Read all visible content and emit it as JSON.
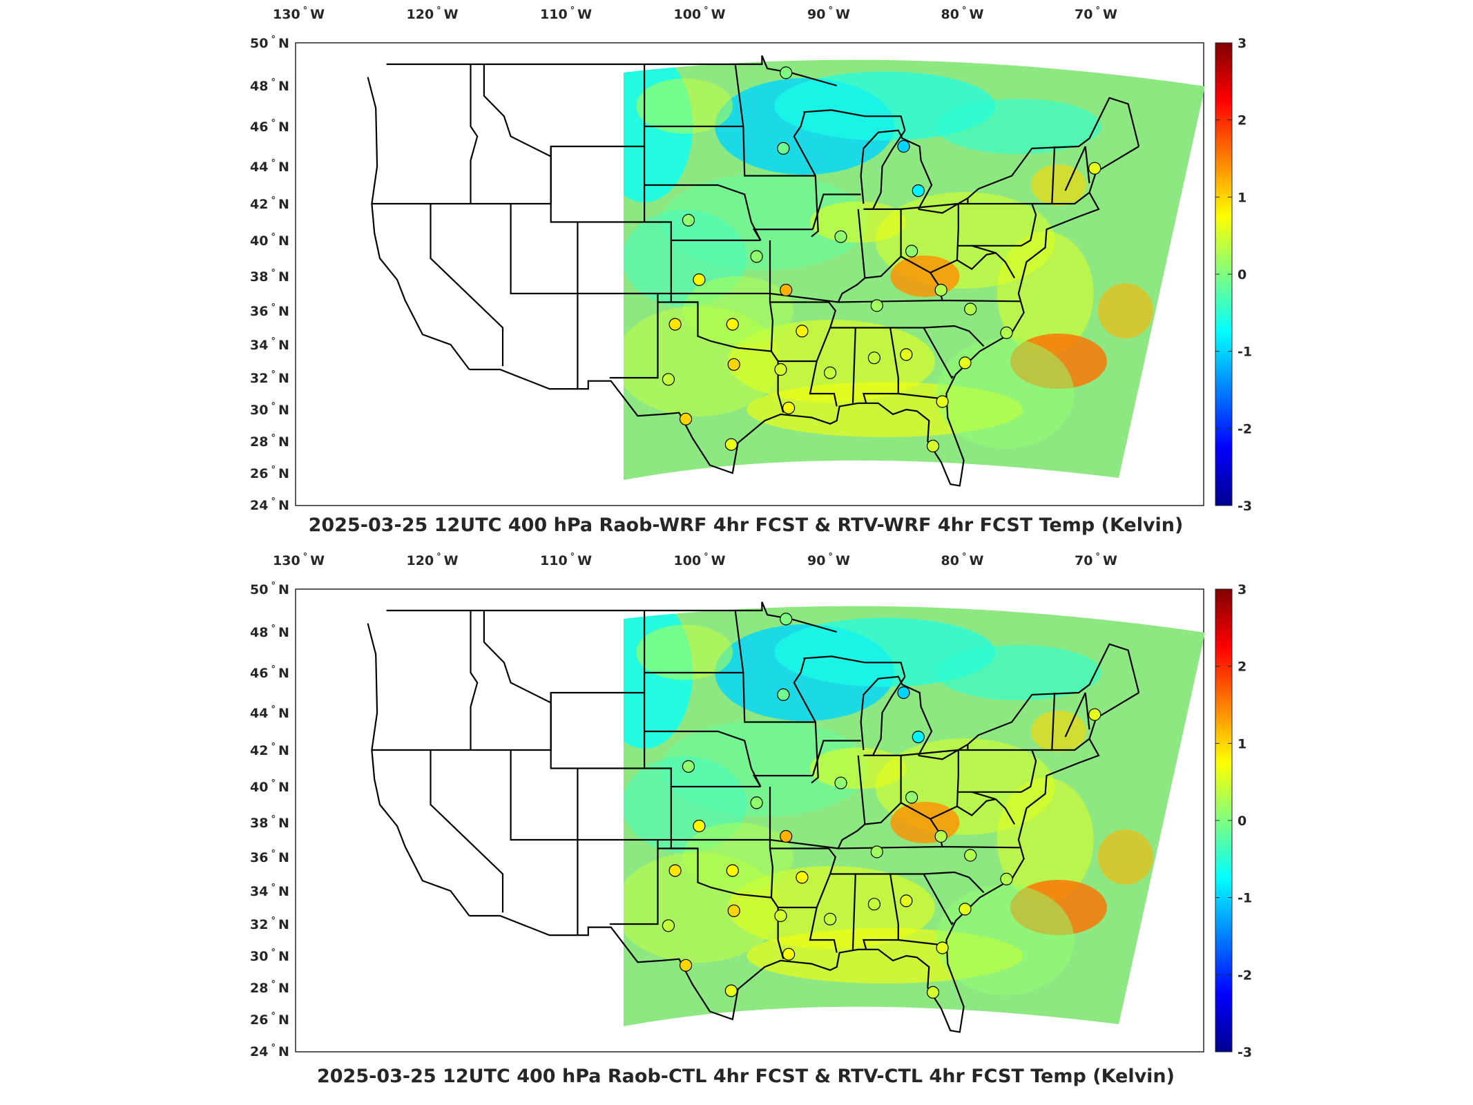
{
  "panels": [
    {
      "id": "top",
      "title": "2025-03-25 12UTC 400 hPa Raob-WRF 4hr FCST & RTV-WRF 4hr FCST Temp (Kelvin)"
    },
    {
      "id": "bottom",
      "title": "2025-03-25 12UTC 400 hPa Raob-CTL 4hr FCST & RTV-CTL 4hr FCST Temp (Kelvin)"
    }
  ],
  "map": {
    "lon_ticks": [
      "130",
      "120",
      "110",
      "100",
      "90",
      "80",
      "70"
    ],
    "lon_suffix": "W",
    "lat_ticks": [
      "50",
      "48",
      "46",
      "44",
      "42",
      "40",
      "38",
      "36",
      "34",
      "32",
      "30",
      "28",
      "26",
      "24"
    ],
    "lat_suffix": "N",
    "degree_symbol": "°",
    "colorbar_ticks": [
      "3",
      "2",
      "1",
      "0",
      "-1",
      "-2",
      "-3"
    ],
    "colorbar_range": [
      -3,
      3
    ],
    "colormap": "jet",
    "field_dominant_colors": {
      "cool": "#3ad9e8",
      "neutral": "#9be36a",
      "warm": "#f4e63a",
      "hot": "#f59a1e"
    }
  },
  "chart_data": [
    {
      "type": "scatter",
      "title": "2025-03-25 12UTC 400 hPa Raob-WRF 4hr FCST & RTV-WRF 4hr FCST Temp (Kelvin)",
      "description_of_marks": "Raob station circles colored by temperature difference (K)",
      "stations": [
        {
          "lon": -93.4,
          "lat": 48.6,
          "value": 0.0
        },
        {
          "lon": -93.6,
          "lat": 44.9,
          "value": -0.1
        },
        {
          "lon": -84.6,
          "lat": 45.0,
          "value": -1.0
        },
        {
          "lon": -83.5,
          "lat": 42.7,
          "value": -0.8
        },
        {
          "lon": -70.3,
          "lat": 43.9,
          "value": 0.6
        },
        {
          "lon": -100.7,
          "lat": 41.1,
          "value": 0.1
        },
        {
          "lon": -95.6,
          "lat": 39.1,
          "value": 0.1
        },
        {
          "lon": -89.3,
          "lat": 40.2,
          "value": 0.1
        },
        {
          "lon": -84.0,
          "lat": 39.4,
          "value": 0.1
        },
        {
          "lon": -99.9,
          "lat": 37.8,
          "value": 0.8
        },
        {
          "lon": -93.4,
          "lat": 37.2,
          "value": 1.2
        },
        {
          "lon": -86.6,
          "lat": 36.3,
          "value": 0.2
        },
        {
          "lon": -81.8,
          "lat": 37.2,
          "value": 0.3
        },
        {
          "lon": -79.6,
          "lat": 36.1,
          "value": 0.3
        },
        {
          "lon": -101.7,
          "lat": 35.2,
          "value": 0.9
        },
        {
          "lon": -97.4,
          "lat": 35.2,
          "value": 0.8
        },
        {
          "lon": -92.2,
          "lat": 34.8,
          "value": 0.8
        },
        {
          "lon": -76.9,
          "lat": 34.7,
          "value": 0.3
        },
        {
          "lon": -102.2,
          "lat": 31.9,
          "value": 0.4
        },
        {
          "lon": -97.3,
          "lat": 32.8,
          "value": 1.0
        },
        {
          "lon": -93.8,
          "lat": 32.5,
          "value": 0.5
        },
        {
          "lon": -90.1,
          "lat": 32.3,
          "value": 0.4
        },
        {
          "lon": -86.8,
          "lat": 33.2,
          "value": 0.4
        },
        {
          "lon": -84.4,
          "lat": 33.4,
          "value": 0.6
        },
        {
          "lon": -80.0,
          "lat": 32.9,
          "value": 0.6
        },
        {
          "lon": -100.9,
          "lat": 29.4,
          "value": 1.0
        },
        {
          "lon": -93.2,
          "lat": 30.1,
          "value": 0.7
        },
        {
          "lon": -81.7,
          "lat": 30.5,
          "value": 0.6
        },
        {
          "lon": -97.5,
          "lat": 27.8,
          "value": 0.6
        },
        {
          "lon": -82.4,
          "lat": 27.7,
          "value": 0.5
        }
      ],
      "xlabel": "",
      "ylabel": "",
      "xlim": [
        -132,
        -64
      ],
      "ylim": [
        24,
        50
      ]
    },
    {
      "type": "scatter",
      "title": "2025-03-25 12UTC 400 hPa Raob-CTL 4hr FCST & RTV-CTL 4hr FCST Temp (Kelvin)",
      "description_of_marks": "Raob station circles colored by temperature difference (K)",
      "stations": [
        {
          "lon": -93.4,
          "lat": 48.6,
          "value": 0.0
        },
        {
          "lon": -93.6,
          "lat": 44.9,
          "value": -0.1
        },
        {
          "lon": -84.6,
          "lat": 45.0,
          "value": -1.0
        },
        {
          "lon": -83.5,
          "lat": 42.7,
          "value": -0.8
        },
        {
          "lon": -70.3,
          "lat": 43.9,
          "value": 0.6
        },
        {
          "lon": -100.7,
          "lat": 41.1,
          "value": 0.1
        },
        {
          "lon": -95.6,
          "lat": 39.1,
          "value": 0.1
        },
        {
          "lon": -89.3,
          "lat": 40.2,
          "value": 0.1
        },
        {
          "lon": -84.0,
          "lat": 39.4,
          "value": 0.1
        },
        {
          "lon": -99.9,
          "lat": 37.8,
          "value": 0.8
        },
        {
          "lon": -93.4,
          "lat": 37.2,
          "value": 1.2
        },
        {
          "lon": -86.6,
          "lat": 36.3,
          "value": 0.2
        },
        {
          "lon": -81.8,
          "lat": 37.2,
          "value": 0.3
        },
        {
          "lon": -79.6,
          "lat": 36.1,
          "value": 0.3
        },
        {
          "lon": -101.7,
          "lat": 35.2,
          "value": 0.9
        },
        {
          "lon": -97.4,
          "lat": 35.2,
          "value": 0.8
        },
        {
          "lon": -92.2,
          "lat": 34.8,
          "value": 0.8
        },
        {
          "lon": -76.9,
          "lat": 34.7,
          "value": 0.3
        },
        {
          "lon": -102.2,
          "lat": 31.9,
          "value": 0.4
        },
        {
          "lon": -97.3,
          "lat": 32.8,
          "value": 1.0
        },
        {
          "lon": -93.8,
          "lat": 32.5,
          "value": 0.5
        },
        {
          "lon": -90.1,
          "lat": 32.3,
          "value": 0.4
        },
        {
          "lon": -86.8,
          "lat": 33.2,
          "value": 0.4
        },
        {
          "lon": -84.4,
          "lat": 33.4,
          "value": 0.6
        },
        {
          "lon": -80.0,
          "lat": 32.9,
          "value": 0.6
        },
        {
          "lon": -100.9,
          "lat": 29.4,
          "value": 1.0
        },
        {
          "lon": -93.2,
          "lat": 30.1,
          "value": 0.7
        },
        {
          "lon": -81.7,
          "lat": 30.5,
          "value": 0.6
        },
        {
          "lon": -97.5,
          "lat": 27.8,
          "value": 0.6
        },
        {
          "lon": -82.4,
          "lat": 27.7,
          "value": 0.5
        }
      ],
      "xlabel": "",
      "ylabel": "",
      "xlim": [
        -132,
        -64
      ],
      "ylim": [
        24,
        50
      ]
    }
  ]
}
